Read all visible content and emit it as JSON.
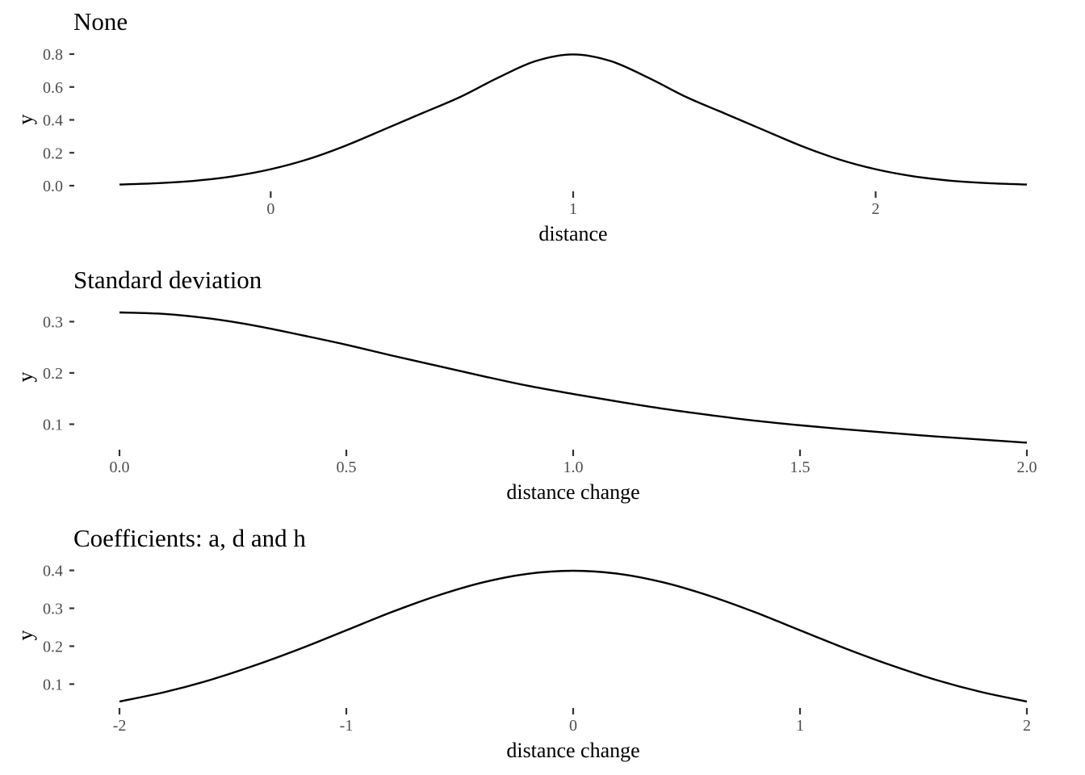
{
  "chart_data": [
    {
      "type": "line",
      "title": "None",
      "xlabel": "distance",
      "ylabel": "y",
      "xlim": [
        -0.5,
        2.5
      ],
      "ylim": [
        0.0,
        0.8
      ],
      "x_ticks": [
        0,
        1,
        2
      ],
      "x_tick_labels": [
        "0",
        "1",
        "2"
      ],
      "y_ticks": [
        0.0,
        0.2,
        0.4,
        0.6,
        0.8
      ],
      "y_tick_labels": [
        "0.0",
        "0.2",
        "0.4",
        "0.6",
        "0.8"
      ],
      "grid": false,
      "series": [
        {
          "x": [
            -0.5,
            -0.375,
            -0.25,
            -0.125,
            0.0,
            0.125,
            0.25,
            0.375,
            0.5,
            0.625,
            0.75,
            0.875,
            1.0,
            1.125,
            1.25,
            1.375,
            1.5,
            1.625,
            1.75,
            1.875,
            2.0,
            2.125,
            2.25,
            2.375,
            2.5
          ],
          "y": [
            0.007,
            0.015,
            0.03,
            0.057,
            0.1,
            0.162,
            0.245,
            0.342,
            0.44,
            0.538,
            0.655,
            0.757,
            0.798,
            0.757,
            0.655,
            0.538,
            0.44,
            0.342,
            0.245,
            0.162,
            0.1,
            0.057,
            0.03,
            0.015,
            0.007
          ]
        }
      ]
    },
    {
      "type": "line",
      "title": "Standard deviation",
      "xlabel": "distance change",
      "ylabel": "y",
      "xlim": [
        0.0,
        2.0
      ],
      "ylim": [
        0.063,
        0.318
      ],
      "x_ticks": [
        0.0,
        0.5,
        1.0,
        1.5,
        2.0
      ],
      "x_tick_labels": [
        "0.0",
        "0.5",
        "1.0",
        "1.5",
        "2.0"
      ],
      "y_ticks": [
        0.1,
        0.2,
        0.3
      ],
      "y_tick_labels": [
        "0.1",
        "0.2",
        "0.3"
      ],
      "grid": false,
      "series": [
        {
          "x": [
            0.0,
            0.1,
            0.2,
            0.3,
            0.4,
            0.5,
            0.6,
            0.7,
            0.8,
            0.9,
            1.0,
            1.1,
            1.2,
            1.3,
            1.4,
            1.5,
            1.6,
            1.7,
            1.8,
            1.9,
            2.0
          ],
          "y": [
            0.318,
            0.315,
            0.306,
            0.292,
            0.274,
            0.255,
            0.234,
            0.214,
            0.194,
            0.175,
            0.159,
            0.144,
            0.13,
            0.118,
            0.107,
            0.098,
            0.09,
            0.083,
            0.076,
            0.07,
            0.064
          ]
        }
      ]
    },
    {
      "type": "line",
      "title": "Coefficients: a, d and h",
      "xlabel": "distance change",
      "ylabel": "y",
      "xlim": [
        -2,
        2
      ],
      "ylim": [
        0.054,
        0.399
      ],
      "x_ticks": [
        -2,
        -1,
        0,
        1,
        2
      ],
      "x_tick_labels": [
        "-2",
        "-1",
        "0",
        "1",
        "2"
      ],
      "y_ticks": [
        0.1,
        0.2,
        0.3,
        0.4
      ],
      "y_tick_labels": [
        "0.1",
        "0.2",
        "0.3",
        "0.4"
      ],
      "grid": false,
      "series": [
        {
          "x": [
            -2.0,
            -1.8,
            -1.6,
            -1.4,
            -1.2,
            -1.0,
            -0.8,
            -0.6,
            -0.4,
            -0.2,
            0.0,
            0.2,
            0.4,
            0.6,
            0.8,
            1.0,
            1.2,
            1.4,
            1.6,
            1.8,
            2.0
          ],
          "y": [
            0.054,
            0.079,
            0.111,
            0.15,
            0.194,
            0.242,
            0.29,
            0.333,
            0.368,
            0.391,
            0.399,
            0.391,
            0.368,
            0.333,
            0.29,
            0.242,
            0.194,
            0.15,
            0.111,
            0.079,
            0.054
          ]
        }
      ]
    }
  ]
}
